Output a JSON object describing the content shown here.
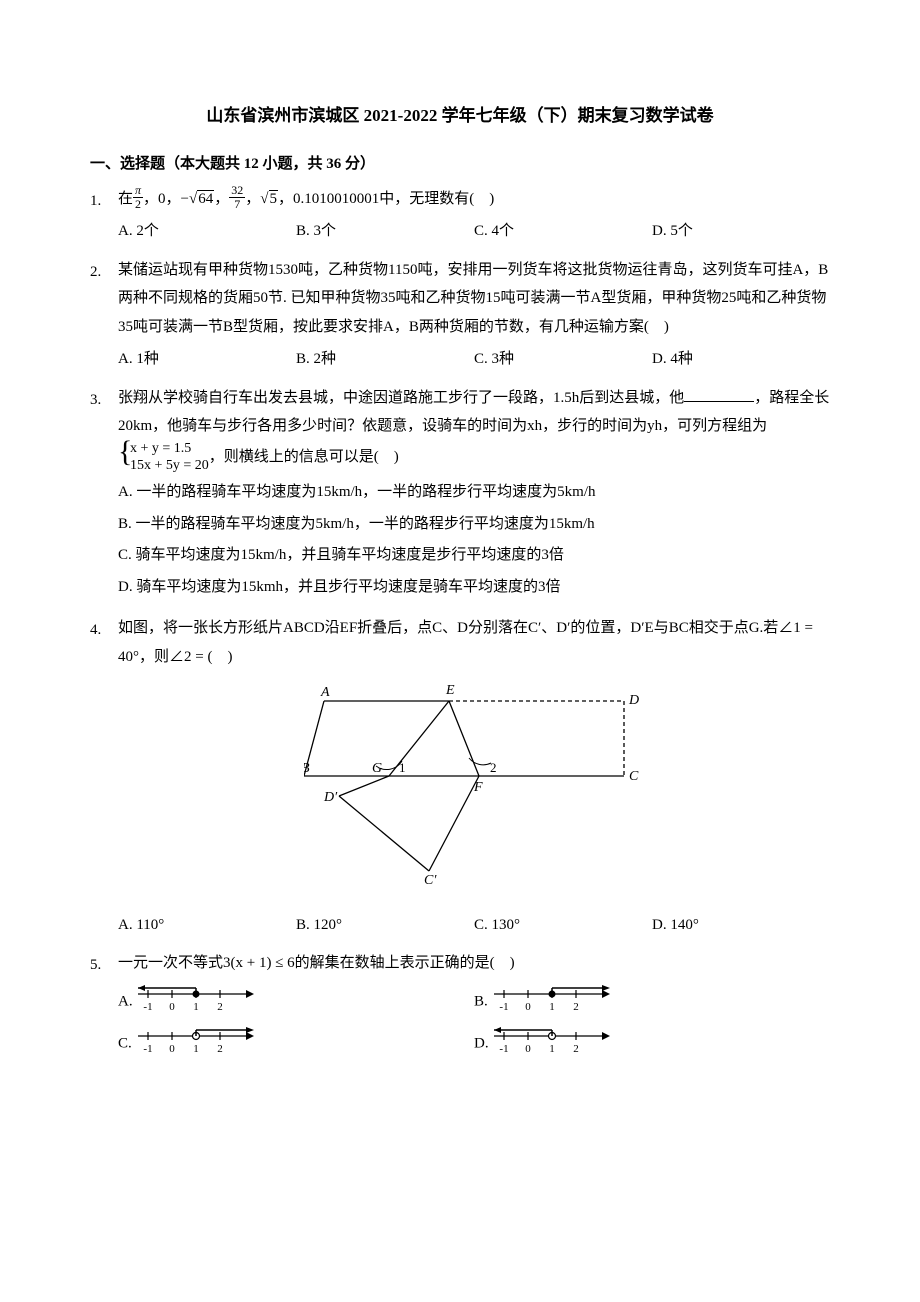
{
  "title": "山东省滨州市滨城区 2021-2022 学年七年级（下）期末复习数学试卷",
  "section1": {
    "header": "一、选择题（本大题共 12 小题，共 36 分）"
  },
  "q1": {
    "num": "1.",
    "stem_prefix": "在",
    "stem_suffix": "中，无理数有( )",
    "optA": "A. 2个",
    "optB": "B. 3个",
    "optC": "C. 4个",
    "optD": "D. 5个"
  },
  "q2": {
    "num": "2.",
    "stem": "某储运站现有甲种货物1530吨，乙种货物1150吨，安排用一列货车将这批货物运往青岛，这列货车可挂A，B两种不同规格的货厢50节. 已知甲种货物35吨和乙种货物15吨可装满一节A型货厢，甲种货物25吨和乙种货物35吨可装满一节B型货厢，按此要求安排A，B两种货厢的节数，有几种运输方案( )",
    "optA": "A. 1种",
    "optB": "B. 2种",
    "optC": "C. 3种",
    "optD": "D. 4种"
  },
  "q3": {
    "num": "3.",
    "stem_p1": "张翔从学校骑自行车出发去县城，中途因道路施工步行了一段路，1.5h后到达县城，他",
    "stem_p2": "，路程全长20km，他骑车与步行各用多少时间？依题意，设骑车的时间为xh，步行的时间为yh，可列方程组为",
    "stem_p3": "，则横线上的信息可以是( )",
    "sys_l1": "x + y = 1.5",
    "sys_l2": "15x + 5y = 20",
    "optA": "A. 一半的路程骑车平均速度为15km/h，一半的路程步行平均速度为5km/h",
    "optB": "B. 一半的路程骑车平均速度为5km/h，一半的路程步行平均速度为15km/h",
    "optC": "C. 骑车平均速度为15km/h，并且骑车平均速度是步行平均速度的3倍",
    "optD": "D. 骑车平均速度为15kmh，并且步行平均速度是骑车平均速度的3倍"
  },
  "q4": {
    "num": "4.",
    "stem": "如图，将一张长方形纸片ABCD沿EF折叠后，点C、D分别落在C′、D′的位置，D′E与BC相交于点G.若∠1 = 40°，则∠2 = ( )",
    "optA": "A. 110°",
    "optB": "B. 120°",
    "optC": "C. 130°",
    "optD": "D. 140°",
    "labels": {
      "A": "A",
      "B": "B",
      "C": "C",
      "D": "D",
      "E": "E",
      "F": "F",
      "G": "G",
      "Cp": "C′",
      "Dp": "D′",
      "a1": "1",
      "a2": "2"
    },
    "colors": {
      "line": "#000000"
    }
  },
  "q5": {
    "num": "5.",
    "stem": "一元一次不等式3(x + 1) ≤ 6的解集在数轴上表示正确的是( )",
    "optA": "A.",
    "optB": "B.",
    "optC": "C.",
    "optD": "D.",
    "nl": {
      "ticks": [
        "-1",
        "0",
        "1",
        "2"
      ],
      "colors": {
        "line": "#000000",
        "fill": "#000000",
        "hollow": "#ffffff"
      }
    }
  }
}
